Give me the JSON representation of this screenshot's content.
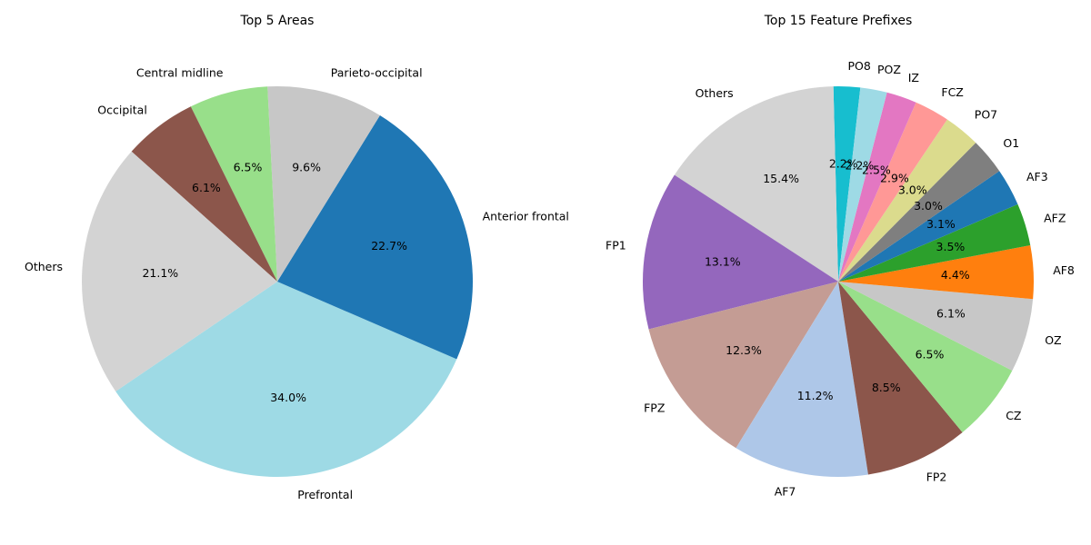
{
  "chart_data": [
    {
      "type": "pie",
      "title": "Top 5 Areas",
      "start_angle": -145.8,
      "direction": "counterclockwise",
      "slices": [
        {
          "label": "Prefrontal",
          "value": 34.0,
          "pct_label": "34.0%",
          "color": "#9edae5"
        },
        {
          "label": "Anterior frontal",
          "value": 22.7,
          "pct_label": "22.7%",
          "color": "#1f77b4"
        },
        {
          "label": "Parieto-occipital",
          "value": 9.6,
          "pct_label": "9.6%",
          "color": "#c7c7c7"
        },
        {
          "label": "Central midline",
          "value": 6.5,
          "pct_label": "6.5%",
          "color": "#98df8a"
        },
        {
          "label": "Occipital",
          "value": 6.1,
          "pct_label": "6.1%",
          "color": "#8c564b"
        },
        {
          "label": "Others",
          "value": 21.1,
          "pct_label": "21.1%",
          "color": "#d3d3d3"
        }
      ]
    },
    {
      "type": "pie",
      "title": "Top 15 Feature Prefixes",
      "start_angle": 83.5,
      "direction": "counterclockwise",
      "slices": [
        {
          "label": "PO8",
          "value": 2.2,
          "pct_label": "2.2%",
          "color": "#17becf"
        },
        {
          "label": "Others",
          "value": 15.4,
          "pct_label": "15.4%",
          "color": "#d3d3d3"
        },
        {
          "label": "FP1",
          "value": 13.1,
          "pct_label": "13.1%",
          "color": "#9467bd"
        },
        {
          "label": "FPZ",
          "value": 12.3,
          "pct_label": "12.3%",
          "color": "#c49c94"
        },
        {
          "label": "AF7",
          "value": 11.2,
          "pct_label": "11.2%",
          "color": "#aec7e8"
        },
        {
          "label": "FP2",
          "value": 8.5,
          "pct_label": "8.5%",
          "color": "#8c564b"
        },
        {
          "label": "CZ",
          "value": 6.5,
          "pct_label": "6.5%",
          "color": "#98df8a"
        },
        {
          "label": "OZ",
          "value": 6.1,
          "pct_label": "6.1%",
          "color": "#c7c7c7"
        },
        {
          "label": "AF8",
          "value": 4.4,
          "pct_label": "4.4%",
          "color": "#ff7f0e"
        },
        {
          "label": "AFZ",
          "value": 3.5,
          "pct_label": "3.5%",
          "color": "#2ca02c"
        },
        {
          "label": "AF3",
          "value": 3.1,
          "pct_label": "3.1%",
          "color": "#1f77b4"
        },
        {
          "label": "O1",
          "value": 3.0,
          "pct_label": "3.0%",
          "color": "#7f7f7f"
        },
        {
          "label": "PO7",
          "value": 3.0,
          "pct_label": "3.0%",
          "color": "#dbdb8d"
        },
        {
          "label": "FCZ",
          "value": 2.9,
          "pct_label": "2.9%",
          "color": "#ff9896"
        },
        {
          "label": "IZ",
          "value": 2.5,
          "pct_label": "2.5%",
          "color": "#e377c2"
        },
        {
          "label": "POZ",
          "value": 2.2,
          "pct_label": "2.2%",
          "color": "#9edae5"
        }
      ]
    }
  ]
}
